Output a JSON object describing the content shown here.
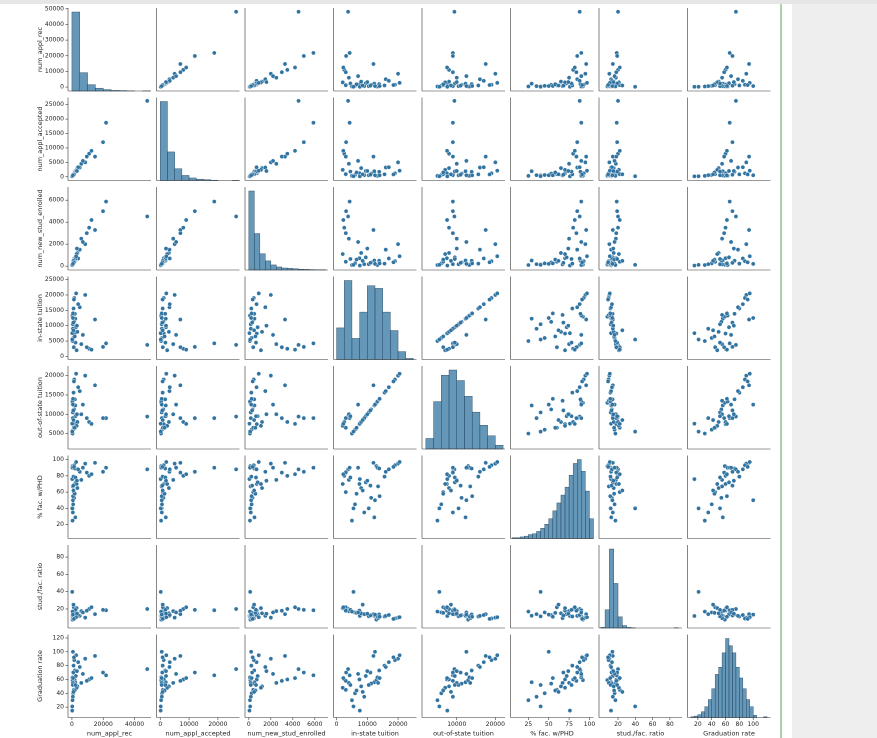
{
  "chart_data": {
    "type": "pairplot",
    "color": "#3274a1",
    "variables": [
      "num_appl_rec",
      "num_appl_accepted",
      "num_new_stud_enrolled",
      "in-state tuition",
      "out-of-state tuition",
      "% fac. w/PHD",
      "stud./fac. ratio",
      "Graduation rate"
    ],
    "axes": [
      {
        "lim": [
          -2500,
          50500
        ],
        "ticks": [
          0,
          10000,
          20000,
          30000,
          40000,
          50000
        ],
        "xticks": [
          0,
          20000,
          40000
        ]
      },
      {
        "lim": [
          -1300,
          27500
        ],
        "ticks": [
          0,
          5000,
          10000,
          15000,
          20000,
          25000
        ],
        "xticks": [
          0,
          10000,
          20000
        ]
      },
      {
        "lim": [
          -350,
          7200
        ],
        "ticks": [
          0,
          2000,
          4000,
          6000
        ],
        "xticks": [
          0,
          2000,
          4000,
          6000
        ]
      },
      {
        "lim": [
          -1000,
          26000
        ],
        "ticks": [
          0,
          5000,
          10000,
          15000,
          20000,
          25000
        ],
        "xticks": [
          0,
          10000,
          20000
        ]
      },
      {
        "lim": [
          1000,
          22500
        ],
        "ticks": [
          5000,
          10000,
          15000,
          20000
        ],
        "xticks": [
          10000,
          20000
        ]
      },
      {
        "lim": [
          3,
          105
        ],
        "ticks": [
          20,
          40,
          60,
          80,
          100
        ],
        "xticks": [
          25,
          50,
          75,
          100
        ]
      },
      {
        "lim": [
          -2,
          94
        ],
        "ticks": [
          20,
          40,
          60,
          80
        ],
        "xticks": [
          20,
          40,
          60,
          80
        ]
      },
      {
        "lim": [
          5,
          125
        ],
        "ticks": [
          20,
          40,
          60,
          80,
          100,
          120
        ],
        "xticks": [
          20,
          40,
          60,
          80,
          100
        ]
      }
    ],
    "records": [
      [
        1660,
        1232,
        721,
        7440,
        7440,
        70,
        18.1,
        60
      ],
      [
        2186,
        1924,
        512,
        12280,
        12280,
        29,
        12.2,
        56
      ],
      [
        1428,
        1097,
        336,
        11250,
        11250,
        53,
        12.9,
        54
      ],
      [
        417,
        349,
        137,
        12960,
        12960,
        92,
        7.7,
        59
      ],
      [
        193,
        146,
        55,
        7560,
        7560,
        76,
        11.9,
        15
      ],
      [
        587,
        479,
        158,
        13500,
        13500,
        67,
        9.4,
        55
      ],
      [
        353,
        340,
        103,
        13290,
        13290,
        90,
        11.5,
        63
      ],
      [
        1899,
        1720,
        489,
        13868,
        13868,
        89,
        13.7,
        73
      ],
      [
        1038,
        839,
        227,
        15595,
        15595,
        79,
        11.3,
        80
      ],
      [
        582,
        498,
        172,
        10468,
        10468,
        40,
        11.5,
        52
      ],
      [
        48094,
        26330,
        4520,
        3750,
        9400,
        88,
        20.0,
        75
      ],
      [
        21804,
        18744,
        5874,
        4250,
        9000,
        90,
        18.5,
        66
      ],
      [
        14752,
        6983,
        3290,
        12000,
        17500,
        96,
        14.0,
        94
      ],
      [
        19873,
        12000,
        5000,
        3100,
        9000,
        85,
        19.0,
        70
      ],
      [
        11000,
        8000,
        3500,
        2500,
        8000,
        80,
        20.0,
        60
      ],
      [
        8500,
        5000,
        2000,
        20000,
        20000,
        95,
        10.0,
        90
      ],
      [
        6000,
        4500,
        2500,
        4000,
        10000,
        75,
        17.5,
        55
      ],
      [
        3500,
        3000,
        1200,
        8000,
        8000,
        65,
        15.0,
        50
      ],
      [
        2500,
        2000,
        800,
        9500,
        9500,
        72,
        14.0,
        65
      ],
      [
        5000,
        3200,
        1500,
        16000,
        16000,
        85,
        12.0,
        78
      ],
      [
        800,
        600,
        250,
        6000,
        6000,
        45,
        16.0,
        40
      ],
      [
        1200,
        900,
        400,
        3000,
        6500,
        60,
        22.0,
        45
      ],
      [
        3000,
        2400,
        1100,
        2000,
        7000,
        70,
        21.0,
        48
      ],
      [
        9500,
        7000,
        3000,
        3000,
        9000,
        84,
        18.0,
        58
      ],
      [
        4000,
        3300,
        700,
        17000,
        17000,
        88,
        13.0,
        85
      ],
      [
        700,
        500,
        250,
        14000,
        14000,
        55,
        11.0,
        62
      ],
      [
        1800,
        1500,
        600,
        6500,
        6500,
        58,
        15.5,
        44
      ],
      [
        900,
        700,
        300,
        11000,
        11000,
        68,
        12.5,
        70
      ],
      [
        2300,
        1800,
        650,
        4500,
        9500,
        78,
        19.0,
        52
      ],
      [
        12500,
        9000,
        4200,
        2200,
        7500,
        82,
        22.0,
        62
      ],
      [
        600,
        550,
        180,
        9000,
        9000,
        35,
        14.0,
        35
      ],
      [
        1500,
        1200,
        450,
        19000,
        19000,
        93,
        9.0,
        88
      ],
      [
        2700,
        2100,
        900,
        20500,
        20500,
        97,
        10.5,
        95
      ],
      [
        400,
        300,
        100,
        5000,
        5000,
        25,
        17.0,
        30
      ],
      [
        7000,
        5500,
        2200,
        7000,
        12500,
        90,
        16.0,
        68
      ],
      [
        3200,
        2000,
        1600,
        10000,
        10000,
        74,
        14.5,
        72
      ],
      [
        1000,
        850,
        480,
        8500,
        8500,
        62,
        25.0,
        42
      ],
      [
        200,
        180,
        120,
        5500,
        5500,
        40,
        39.8,
        21
      ],
      [
        1300,
        800,
        350,
        18500,
        18500,
        91,
        8.5,
        92
      ],
      [
        650,
        520,
        210,
        12500,
        12500,
        50,
        13.5,
        100
      ]
    ],
    "histograms": [
      {
        "bins": [
          0,
          5000,
          10000,
          15000,
          20000,
          25000,
          30000,
          35000,
          40000,
          45000,
          50000
        ],
        "counts": [
          560,
          130,
          45,
          20,
          10,
          4,
          3,
          1,
          0,
          1
        ]
      },
      {
        "bins": [
          0,
          2500,
          5000,
          7500,
          10000,
          12500,
          15000,
          17500,
          20000,
          22500,
          25000,
          27500
        ],
        "counts": [
          470,
          170,
          70,
          30,
          15,
          8,
          5,
          2,
          0,
          0,
          1
        ]
      },
      {
        "bins": [
          0,
          500,
          1000,
          1500,
          2000,
          2500,
          3000,
          3500,
          4000,
          4500,
          5000,
          5500,
          6000,
          6500,
          7000
        ],
        "counts": [
          390,
          180,
          80,
          45,
          25,
          15,
          10,
          8,
          6,
          4,
          3,
          2,
          1,
          1
        ]
      },
      {
        "bins": [
          0,
          2500,
          5000,
          7500,
          10000,
          12500,
          15000,
          17500,
          20000,
          22500,
          25000
        ],
        "counts": [
          60,
          150,
          40,
          90,
          140,
          135,
          90,
          55,
          15,
          2
        ]
      },
      {
        "bins": [
          2000,
          4000,
          6000,
          8000,
          10000,
          12000,
          14000,
          16000,
          18000,
          20000,
          22000
        ],
        "counts": [
          20,
          90,
          140,
          150,
          130,
          100,
          70,
          45,
          25,
          7
        ]
      },
      {
        "bins": [
          5,
          10,
          15,
          20,
          25,
          30,
          35,
          40,
          45,
          50,
          55,
          60,
          65,
          70,
          75,
          80,
          85,
          90,
          95,
          100,
          105
        ],
        "counts": [
          1,
          1,
          2,
          3,
          5,
          6,
          9,
          13,
          18,
          25,
          35,
          45,
          55,
          65,
          80,
          95,
          100,
          85,
          60,
          25
        ]
      },
      {
        "bins": [
          0,
          5,
          10,
          15,
          20,
          25,
          30,
          35,
          40,
          45,
          50,
          55,
          60,
          65,
          70,
          75,
          80,
          85,
          90
        ],
        "counts": [
          3,
          90,
          390,
          220,
          55,
          12,
          3,
          1,
          0,
          0,
          0,
          0,
          0,
          0,
          0,
          0,
          0,
          1
        ]
      },
      {
        "bins": [
          10,
          15,
          20,
          25,
          30,
          35,
          40,
          45,
          50,
          55,
          60,
          65,
          70,
          75,
          80,
          85,
          90,
          95,
          100,
          105,
          110,
          115,
          120
        ],
        "counts": [
          1,
          2,
          4,
          8,
          15,
          25,
          40,
          60,
          70,
          90,
          110,
          100,
          90,
          70,
          55,
          40,
          25,
          15,
          3,
          0,
          0,
          1
        ]
      }
    ]
  }
}
